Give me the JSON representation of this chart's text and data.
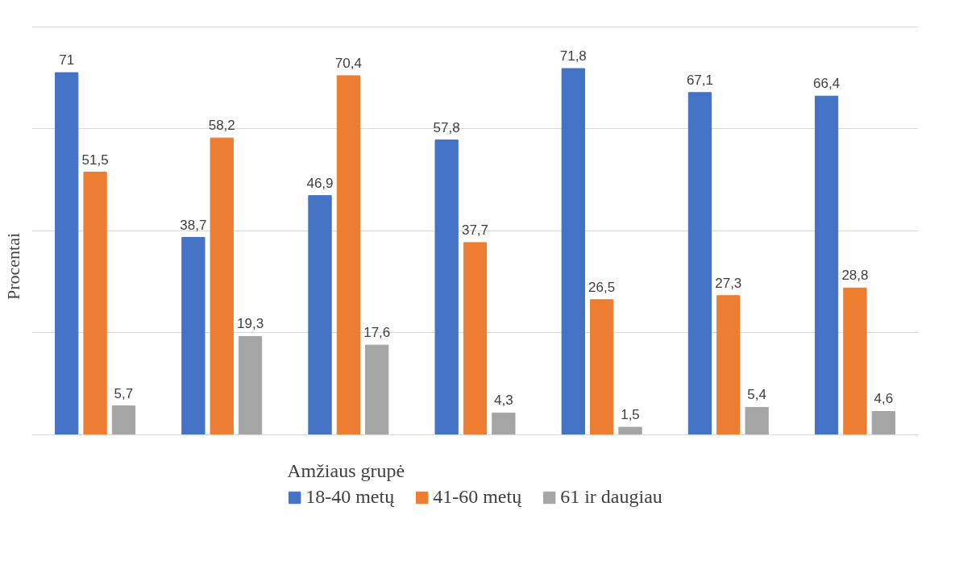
{
  "chart_data": {
    "type": "bar",
    "ylabel": "Procentai",
    "legend_title": "Amžiaus grupė",
    "categories": [
      null,
      null,
      null,
      null,
      null,
      null,
      null
    ],
    "series": [
      {
        "name": "18-40 metų",
        "color": "#4472c4",
        "values": [
          71,
          38.7,
          46.9,
          57.8,
          71.8,
          67.1,
          66.4
        ],
        "value_labels": [
          "71",
          "38,7",
          "46,9",
          "57,8",
          "71,8",
          "67,1",
          "66,4"
        ]
      },
      {
        "name": "41-60 metų",
        "color": "#ed7d31",
        "values": [
          51.5,
          58.2,
          70.4,
          37.7,
          26.5,
          27.3,
          28.8
        ],
        "value_labels": [
          "51,5",
          "58,2",
          "70,4",
          "37,7",
          "26,5",
          "27,3",
          "28,8"
        ]
      },
      {
        "name": "61 ir daugiau",
        "color": "#a5a5a5",
        "values": [
          5.7,
          19.3,
          17.6,
          4.3,
          1.5,
          5.4,
          4.6
        ],
        "value_labels": [
          "5,7",
          "19,3",
          "17,6",
          "4,3",
          "1,5",
          "5,4",
          "4,6"
        ]
      }
    ],
    "grid": "y",
    "legend": "bottom",
    "tick_labels": false
  }
}
